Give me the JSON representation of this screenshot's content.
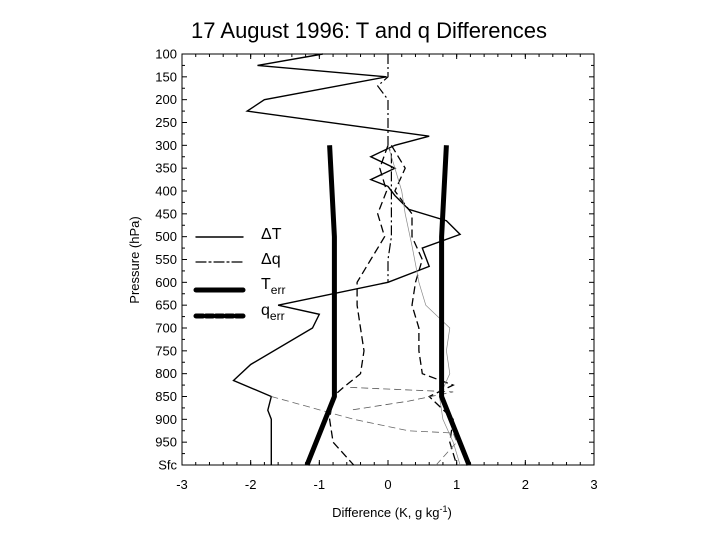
{
  "chart_data": {
    "type": "line",
    "title": "17 August 1996: T and q Differences",
    "xlabel": "Difference (K, g kg",
    "xlabel_sup": "-1",
    "xlabel_end": ")",
    "ylabel": "Pressure (hPa)",
    "xlim": [
      -3,
      3
    ],
    "x_ticks": [
      -3,
      -2,
      -1,
      0,
      1,
      2,
      3
    ],
    "y_tick_labels": [
      "100",
      "150",
      "200",
      "250",
      "300",
      "350",
      "400",
      "450",
      "500",
      "550",
      "600",
      "650",
      "700",
      "750",
      "800",
      "850",
      "900",
      "950",
      "Sfc"
    ],
    "y_tick_pressures": [
      100,
      150,
      200,
      250,
      300,
      350,
      400,
      450,
      500,
      550,
      600,
      650,
      700,
      750,
      800,
      850,
      900,
      950,
      995
    ],
    "grid": false,
    "legend": {
      "placement": "left",
      "entries": [
        {
          "symbol": "ΔT",
          "style": "solid"
        },
        {
          "symbol": "Δq",
          "style": "dash-dot"
        },
        {
          "symbol": "T",
          "sub": "err",
          "style": "thick-solid"
        },
        {
          "symbol": "q",
          "sub": "err",
          "style": "thick-dashed"
        }
      ]
    },
    "series": [
      {
        "name": "ΔT",
        "style": "solid",
        "color": "#000000",
        "points": [
          [
            -0.95,
            100
          ],
          [
            -1.9,
            125
          ],
          [
            -0.02,
            150
          ],
          [
            -1.8,
            200
          ],
          [
            -2.05,
            225
          ],
          [
            0.6,
            280
          ],
          [
            0.1,
            300
          ],
          [
            -0.25,
            325
          ],
          [
            0.1,
            350
          ],
          [
            -0.25,
            375
          ],
          [
            0,
            390
          ],
          [
            0.1,
            410
          ],
          [
            0.3,
            440
          ],
          [
            0.85,
            465
          ],
          [
            1.05,
            495
          ],
          [
            0.5,
            525
          ],
          [
            0.6,
            565
          ],
          [
            0.0,
            600
          ],
          [
            -1.6,
            650
          ],
          [
            -1.0,
            670
          ],
          [
            -1.1,
            700
          ],
          [
            -2.0,
            780
          ],
          [
            -2.25,
            815
          ],
          [
            -1.7,
            850
          ],
          [
            -1.75,
            880
          ],
          [
            -1.7,
            900
          ],
          [
            -1.7,
            995
          ]
        ]
      },
      {
        "name": "Δq",
        "style": "dash-dot",
        "color": "#000000",
        "points": [
          [
            0,
            100
          ],
          [
            0,
            150
          ],
          [
            -0.15,
            170
          ],
          [
            0,
            200
          ],
          [
            0,
            250
          ],
          [
            0,
            300
          ],
          [
            0.05,
            320
          ],
          [
            0.05,
            345
          ],
          [
            0.05,
            370
          ],
          [
            0.05,
            400
          ],
          [
            0.05,
            450
          ],
          [
            0.05,
            500
          ],
          [
            0,
            550
          ],
          [
            0,
            600
          ]
        ]
      },
      {
        "name": "ΔT (dashed, lower)",
        "style": "dashed",
        "color": "#000000",
        "points": [
          [
            0,
            300
          ],
          [
            -0.12,
            350
          ],
          [
            -0.02,
            400
          ],
          [
            -0.15,
            450
          ],
          [
            -0.05,
            500
          ],
          [
            -0.25,
            550
          ],
          [
            -0.45,
            600
          ],
          [
            -0.45,
            650
          ],
          [
            -0.4,
            700
          ],
          [
            -0.35,
            750
          ],
          [
            -0.4,
            800
          ],
          [
            -0.65,
            830
          ],
          [
            -0.8,
            850
          ],
          [
            -0.85,
            900
          ],
          [
            -0.8,
            950
          ],
          [
            -0.5,
            995
          ]
        ]
      },
      {
        "name": "Δq (dashed, right)",
        "style": "dashed",
        "color": "#000000",
        "points": [
          [
            0.05,
            300
          ],
          [
            0.25,
            350
          ],
          [
            0.1,
            400
          ],
          [
            0.35,
            450
          ],
          [
            0.35,
            500
          ],
          [
            0.5,
            550
          ],
          [
            0.4,
            600
          ],
          [
            0.35,
            650
          ],
          [
            0.45,
            700
          ],
          [
            0.45,
            750
          ],
          [
            0.5,
            800
          ],
          [
            0.95,
            825
          ],
          [
            0.6,
            850
          ],
          [
            0.95,
            900
          ],
          [
            0.9,
            950
          ],
          [
            1.0,
            995
          ]
        ]
      },
      {
        "name": "ΔT (thin dashed)",
        "style": "thin-dashed",
        "color": "#666666",
        "points": [
          [
            -1.7,
            850
          ],
          [
            -0.5,
            900
          ],
          [
            0.3,
            925
          ],
          [
            0.95,
            930
          ],
          [
            1.0,
            950
          ],
          [
            0.7,
            995
          ]
        ]
      },
      {
        "name": "Δq (thin dashed)",
        "style": "thin-dashed",
        "color": "#555555",
        "points": [
          [
            -0.55,
            830
          ],
          [
            0.95,
            840
          ],
          [
            0.3,
            860
          ],
          [
            -0.55,
            880
          ]
        ]
      },
      {
        "name": "Δq (thin solid)",
        "style": "thin",
        "color": "#888888",
        "points": [
          [
            0.0,
            300
          ],
          [
            0.1,
            350
          ],
          [
            0.2,
            400
          ],
          [
            0.25,
            450
          ],
          [
            0.35,
            520
          ],
          [
            0.4,
            560
          ],
          [
            0.45,
            600
          ],
          [
            0.55,
            650
          ],
          [
            0.9,
            700
          ],
          [
            0.85,
            750
          ],
          [
            0.9,
            800
          ],
          [
            0.75,
            850
          ],
          [
            0.8,
            900
          ],
          [
            0.95,
            950
          ],
          [
            1.05,
            995
          ]
        ]
      },
      {
        "name": "T_err (left)",
        "style": "thick-solid",
        "color": "#000000",
        "points": [
          [
            -0.85,
            300
          ],
          [
            -0.78,
            500
          ],
          [
            -0.78,
            850
          ],
          [
            -1.18,
            995
          ]
        ]
      },
      {
        "name": "T_err (right)",
        "style": "thick-solid",
        "color": "#000000",
        "points": [
          [
            0.85,
            300
          ],
          [
            0.78,
            500
          ],
          [
            0.78,
            850
          ],
          [
            1.18,
            995
          ]
        ]
      }
    ]
  }
}
